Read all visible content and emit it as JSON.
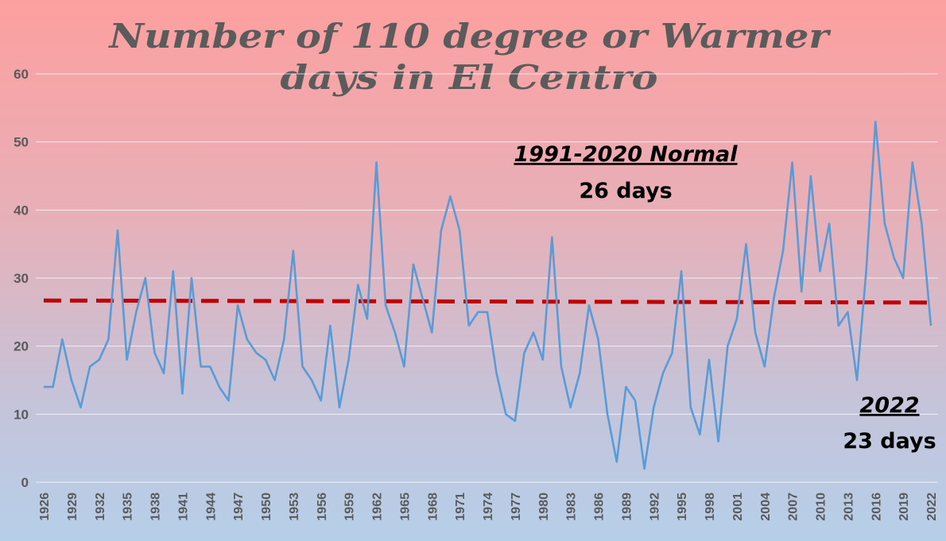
{
  "chart_data": {
    "type": "line",
    "title_line1": "Number of 110 degree or Warmer",
    "title_line2": "days in El Centro",
    "xlabel": "",
    "ylabel": "",
    "ylim": [
      0,
      60
    ],
    "yticks": [
      0,
      10,
      20,
      30,
      40,
      50,
      60
    ],
    "grid": true,
    "xtick_labels": [
      "1926",
      "1929",
      "1932",
      "1935",
      "1938",
      "1941",
      "1944",
      "1947",
      "1950",
      "1953",
      "1956",
      "1959",
      "1962",
      "1965",
      "1968",
      "1971",
      "1974",
      "1977",
      "1980",
      "1983",
      "1986",
      "1989",
      "1992",
      "1995",
      "1998",
      "2001",
      "2004",
      "2007",
      "2010",
      "2013",
      "2016",
      "2019",
      "2022"
    ],
    "x": [
      1926,
      1927,
      1928,
      1929,
      1930,
      1931,
      1932,
      1933,
      1934,
      1935,
      1936,
      1937,
      1938,
      1939,
      1940,
      1941,
      1942,
      1943,
      1944,
      1945,
      1946,
      1947,
      1948,
      1949,
      1950,
      1951,
      1952,
      1953,
      1954,
      1955,
      1956,
      1957,
      1958,
      1959,
      1960,
      1961,
      1962,
      1963,
      1964,
      1965,
      1966,
      1967,
      1968,
      1969,
      1970,
      1971,
      1972,
      1973,
      1974,
      1975,
      1976,
      1977,
      1978,
      1979,
      1980,
      1981,
      1982,
      1983,
      1984,
      1985,
      1986,
      1987,
      1988,
      1989,
      1990,
      1991,
      1992,
      1993,
      1994,
      1995,
      1996,
      1997,
      1998,
      1999,
      2000,
      2001,
      2002,
      2003,
      2004,
      2005,
      2006,
      2007,
      2008,
      2009,
      2010,
      2011,
      2012,
      2013,
      2014,
      2015,
      2016,
      2017,
      2018,
      2019,
      2020,
      2021,
      2022
    ],
    "series": [
      {
        "color": "#5b9bd5",
        "values": [
          14,
          14,
          21,
          15,
          11,
          17,
          18,
          21,
          37,
          18,
          25,
          30,
          19,
          16,
          31,
          13,
          30,
          17,
          17,
          14,
          12,
          26,
          21,
          19,
          18,
          15,
          21,
          34,
          17,
          15,
          12,
          23,
          11,
          18,
          29,
          24,
          47,
          26,
          22,
          17,
          32,
          27,
          22,
          37,
          42,
          37,
          23,
          25,
          25,
          16,
          10,
          9,
          19,
          22,
          18,
          36,
          17,
          11,
          16,
          26,
          21,
          10,
          3,
          14,
          12,
          2,
          11,
          16,
          19,
          31,
          11,
          7,
          18,
          6,
          20,
          24,
          35,
          22,
          17,
          27,
          34,
          47,
          28,
          45,
          31,
          38,
          23,
          25,
          15,
          31,
          53,
          38,
          33,
          30,
          47,
          38,
          23
        ]
      }
    ],
    "normal_line": {
      "value_start": 26.7,
      "value_end": 26.4,
      "color": "#c00000"
    },
    "annotations": {
      "normal_title": "1991-2020 Normal",
      "normal_value": "26 days",
      "latest_title": "2022",
      "latest_value": "23 days"
    }
  }
}
